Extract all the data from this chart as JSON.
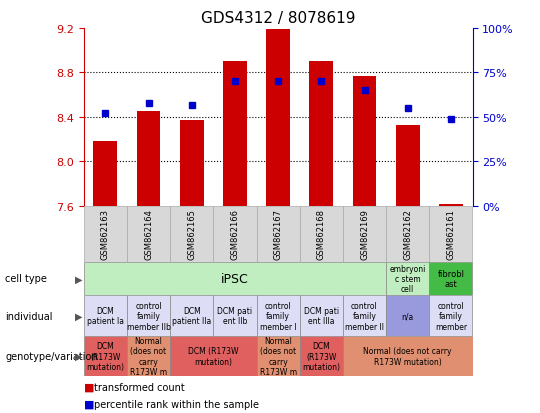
{
  "title": "GDS4312 / 8078619",
  "samples": [
    "GSM862163",
    "GSM862164",
    "GSM862165",
    "GSM862166",
    "GSM862167",
    "GSM862168",
    "GSM862169",
    "GSM862162",
    "GSM862161"
  ],
  "transformed_count": [
    8.18,
    8.45,
    8.37,
    8.9,
    9.19,
    8.9,
    8.77,
    8.33,
    7.62
  ],
  "percentile_rank": [
    52,
    58,
    57,
    70,
    70,
    70,
    65,
    55,
    49
  ],
  "ylim": [
    7.6,
    9.2
  ],
  "y2lim": [
    0,
    100
  ],
  "yticks": [
    7.6,
    8.0,
    8.4,
    8.8,
    9.2
  ],
  "y2ticks": [
    0,
    25,
    50,
    75,
    100
  ],
  "bar_color": "#cc0000",
  "dot_color": "#0000cc",
  "bar_bottom": 7.6,
  "individual_row": [
    {
      "text": "DCM\npatient Ia",
      "color": "#ddddf5",
      "start": 0,
      "end": 1
    },
    {
      "text": "control\nfamily\nmember IIb",
      "color": "#ddddf5",
      "start": 1,
      "end": 2
    },
    {
      "text": "DCM\npatient IIa",
      "color": "#ddddf5",
      "start": 2,
      "end": 3
    },
    {
      "text": "DCM pati\nent IIb",
      "color": "#ddddf5",
      "start": 3,
      "end": 4
    },
    {
      "text": "control\nfamily\nmember I",
      "color": "#ddddf5",
      "start": 4,
      "end": 5
    },
    {
      "text": "DCM pati\nent IIIa",
      "color": "#ddddf5",
      "start": 5,
      "end": 6
    },
    {
      "text": "control\nfamily\nmember II",
      "color": "#ddddf5",
      "start": 6,
      "end": 7
    },
    {
      "text": "n/a",
      "color": "#9999dd",
      "start": 7,
      "end": 8
    },
    {
      "text": "control\nfamily\nmember",
      "color": "#ddddf5",
      "start": 8,
      "end": 9
    }
  ],
  "genotype_row": [
    {
      "text": "DCM\n(R173W\nmutation)",
      "color": "#e06060",
      "start": 0,
      "end": 1
    },
    {
      "text": "Normal\n(does not\ncarry\nR173W m",
      "color": "#e09070",
      "start": 1,
      "end": 2
    },
    {
      "text": "DCM (R173W\nmutation)",
      "color": "#e06060",
      "start": 2,
      "end": 4
    },
    {
      "text": "Normal\n(does not\ncarry\nR173W m",
      "color": "#e09070",
      "start": 4,
      "end": 5
    },
    {
      "text": "DCM\n(R173W\nmutation)",
      "color": "#e06060",
      "start": 5,
      "end": 6
    },
    {
      "text": "Normal (does not carry\nR173W mutation)",
      "color": "#e09070",
      "start": 6,
      "end": 9
    }
  ]
}
